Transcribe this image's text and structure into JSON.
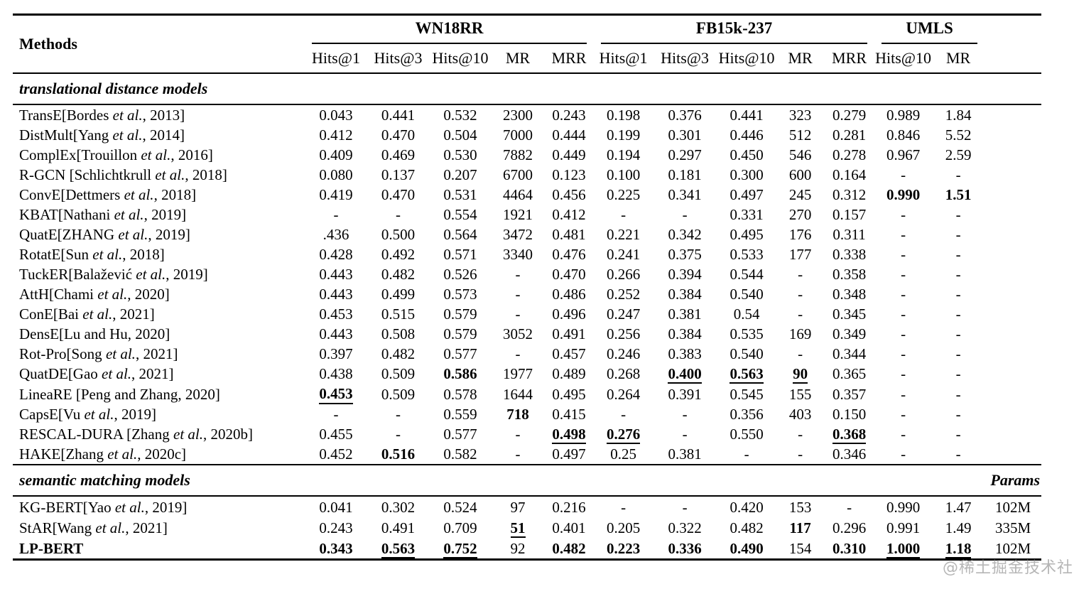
{
  "header": {
    "methods_label": "Methods",
    "groups": [
      {
        "label": "WN18RR",
        "cols": [
          "Hits@1",
          "Hits@3",
          "Hits@10",
          "MR",
          "MRR"
        ]
      },
      {
        "label": "FB15k-237",
        "cols": [
          "Hits@1",
          "Hits@3",
          "Hits@10",
          "MR",
          "MRR"
        ]
      },
      {
        "label": "UMLS",
        "cols": [
          "Hits@10",
          "MR"
        ]
      }
    ]
  },
  "sections": [
    {
      "title": "translational distance models",
      "params_label": "",
      "rows": [
        {
          "method": "TransE[Bordes et al., 2013]",
          "cells": [
            "0.043",
            "0.441",
            "0.532",
            "2300",
            "0.243",
            "0.198",
            "0.376",
            "0.441",
            "323",
            "0.279",
            "0.989",
            "1.84"
          ],
          "params": ""
        },
        {
          "method": "DistMult[Yang et al., 2014]",
          "cells": [
            "0.412",
            "0.470",
            "0.504",
            "7000",
            "0.444",
            "0.199",
            "0.301",
            "0.446",
            "512",
            "0.281",
            "0.846",
            "5.52"
          ],
          "params": ""
        },
        {
          "method": "ComplEx[Trouillon et al., 2016]",
          "cells": [
            "0.409",
            "0.469",
            "0.530",
            "7882",
            "0.449",
            "0.194",
            "0.297",
            "0.450",
            "546",
            "0.278",
            "0.967",
            "2.59"
          ],
          "params": ""
        },
        {
          "method": "R-GCN [Schlichtkrull et al., 2018]",
          "cells": [
            "0.080",
            "0.137",
            "0.207",
            "6700",
            "0.123",
            "0.100",
            "0.181",
            "0.300",
            "600",
            "0.164",
            "-",
            "-"
          ],
          "params": ""
        },
        {
          "method": "ConvE[Dettmers et al., 2018]",
          "cells": [
            "0.419",
            "0.470",
            "0.531",
            "4464",
            "0.456",
            "0.225",
            "0.341",
            "0.497",
            "245",
            "0.312",
            {
              "v": "0.990",
              "b": true
            },
            {
              "v": "1.51",
              "b": true
            }
          ],
          "params": ""
        },
        {
          "method": "KBAT[Nathani et al., 2019]",
          "cells": [
            "-",
            "-",
            "0.554",
            "1921",
            "0.412",
            "-",
            "-",
            "0.331",
            "270",
            "0.157",
            "-",
            "-"
          ],
          "params": ""
        },
        {
          "method": "QuatE[ZHANG et al., 2019]",
          "cells": [
            ".436",
            "0.500",
            "0.564",
            "3472",
            "0.481",
            "0.221",
            "0.342",
            "0.495",
            "176",
            "0.311",
            "-",
            "-"
          ],
          "params": ""
        },
        {
          "method": "RotatE[Sun et al., 2018]",
          "cells": [
            "0.428",
            "0.492",
            "0.571",
            "3340",
            "0.476",
            "0.241",
            "0.375",
            "0.533",
            "177",
            "0.338",
            "-",
            "-"
          ],
          "params": ""
        },
        {
          "method": "TuckER[Balažević et al., 2019]",
          "cells": [
            "0.443",
            "0.482",
            "0.526",
            "-",
            "0.470",
            "0.266",
            "0.394",
            "0.544",
            "-",
            "0.358",
            "-",
            "-"
          ],
          "params": ""
        },
        {
          "method": "AttH[Chami et al., 2020]",
          "cells": [
            "0.443",
            "0.499",
            "0.573",
            "-",
            "0.486",
            "0.252",
            "0.384",
            "0.540",
            "-",
            "0.348",
            "-",
            "-"
          ],
          "params": ""
        },
        {
          "method": "ConE[Bai et al., 2021]",
          "cells": [
            "0.453",
            "0.515",
            "0.579",
            "-",
            "0.496",
            "0.247",
            "0.381",
            "0.54",
            "-",
            "0.345",
            "-",
            "-"
          ],
          "params": ""
        },
        {
          "method": "DensE[Lu and Hu, 2020]",
          "cells": [
            "0.443",
            "0.508",
            "0.579",
            "3052",
            "0.491",
            "0.256",
            "0.384",
            "0.535",
            "169",
            "0.349",
            "-",
            "-"
          ],
          "params": ""
        },
        {
          "method": "Rot-Pro[Song et al., 2021]",
          "cells": [
            "0.397",
            "0.482",
            "0.577",
            "-",
            "0.457",
            "0.246",
            "0.383",
            "0.540",
            "-",
            "0.344",
            "-",
            "-"
          ],
          "params": ""
        },
        {
          "method": "QuatDE[Gao et al., 2021]",
          "cells": [
            "0.438",
            "0.509",
            {
              "v": "0.586",
              "b": true
            },
            "1977",
            "0.489",
            "0.268",
            {
              "v": "0.400",
              "b": true,
              "u": true
            },
            {
              "v": "0.563",
              "b": true,
              "u": true
            },
            {
              "v": "90",
              "b": true,
              "u": true
            },
            "0.365",
            "-",
            "-"
          ],
          "params": ""
        },
        {
          "method": "LineaRE [Peng and Zhang, 2020]",
          "cells": [
            {
              "v": "0.453",
              "b": true,
              "u": true
            },
            "0.509",
            "0.578",
            "1644",
            "0.495",
            "0.264",
            "0.391",
            "0.545",
            "155",
            "0.357",
            "-",
            "-"
          ],
          "params": ""
        },
        {
          "method": "CapsE[Vu et al., 2019]",
          "cells": [
            "-",
            "-",
            "0.559",
            {
              "v": "718",
              "b": true
            },
            "0.415",
            "-",
            "-",
            "0.356",
            "403",
            "0.150",
            "-",
            "-"
          ],
          "params": ""
        },
        {
          "method": "RESCAL-DURA [Zhang et al., 2020b]",
          "cells": [
            "0.455",
            "-",
            "0.577",
            "-",
            {
              "v": "0.498",
              "b": true,
              "u": true
            },
            {
              "v": "0.276",
              "b": true,
              "u": true
            },
            "-",
            "0.550",
            "-",
            {
              "v": "0.368",
              "b": true,
              "u": true
            },
            "-",
            "-"
          ],
          "params": ""
        },
        {
          "method": "HAKE[Zhang et al., 2020c]",
          "cells": [
            "0.452",
            {
              "v": "0.516",
              "b": true
            },
            "0.582",
            "-",
            "0.497",
            "0.25",
            "0.381",
            "-",
            "-",
            "0.346",
            "-",
            "-"
          ],
          "params": ""
        }
      ]
    },
    {
      "title": "semantic matching models",
      "params_label": "Params",
      "rows": [
        {
          "method": "KG-BERT[Yao et al., 2019]",
          "cells": [
            "0.041",
            "0.302",
            "0.524",
            "97",
            "0.216",
            "-",
            "-",
            "0.420",
            "153",
            "-",
            "0.990",
            "1.47"
          ],
          "params": "102M"
        },
        {
          "method": "StAR[Wang et al., 2021]",
          "cells": [
            "0.243",
            "0.491",
            "0.709",
            {
              "v": "51",
              "b": true,
              "u": true
            },
            "0.401",
            "0.205",
            "0.322",
            "0.482",
            {
              "v": "117",
              "b": true
            },
            "0.296",
            "0.991",
            "1.49"
          ],
          "params": "335M"
        },
        {
          "method": "LP-BERT",
          "method_bold": true,
          "cells": [
            {
              "v": "0.343",
              "b": true
            },
            {
              "v": "0.563",
              "b": true,
              "u": true
            },
            {
              "v": "0.752",
              "b": true,
              "u": true
            },
            "92",
            {
              "v": "0.482",
              "b": true
            },
            {
              "v": "0.223",
              "b": true
            },
            {
              "v": "0.336",
              "b": true
            },
            {
              "v": "0.490",
              "b": true
            },
            "154",
            {
              "v": "0.310",
              "b": true
            },
            {
              "v": "1.000",
              "b": true,
              "u": true
            },
            {
              "v": "1.18",
              "b": true,
              "u": true
            }
          ],
          "params": "102M"
        }
      ]
    }
  ],
  "watermark": "@稀土掘金技术社区"
}
